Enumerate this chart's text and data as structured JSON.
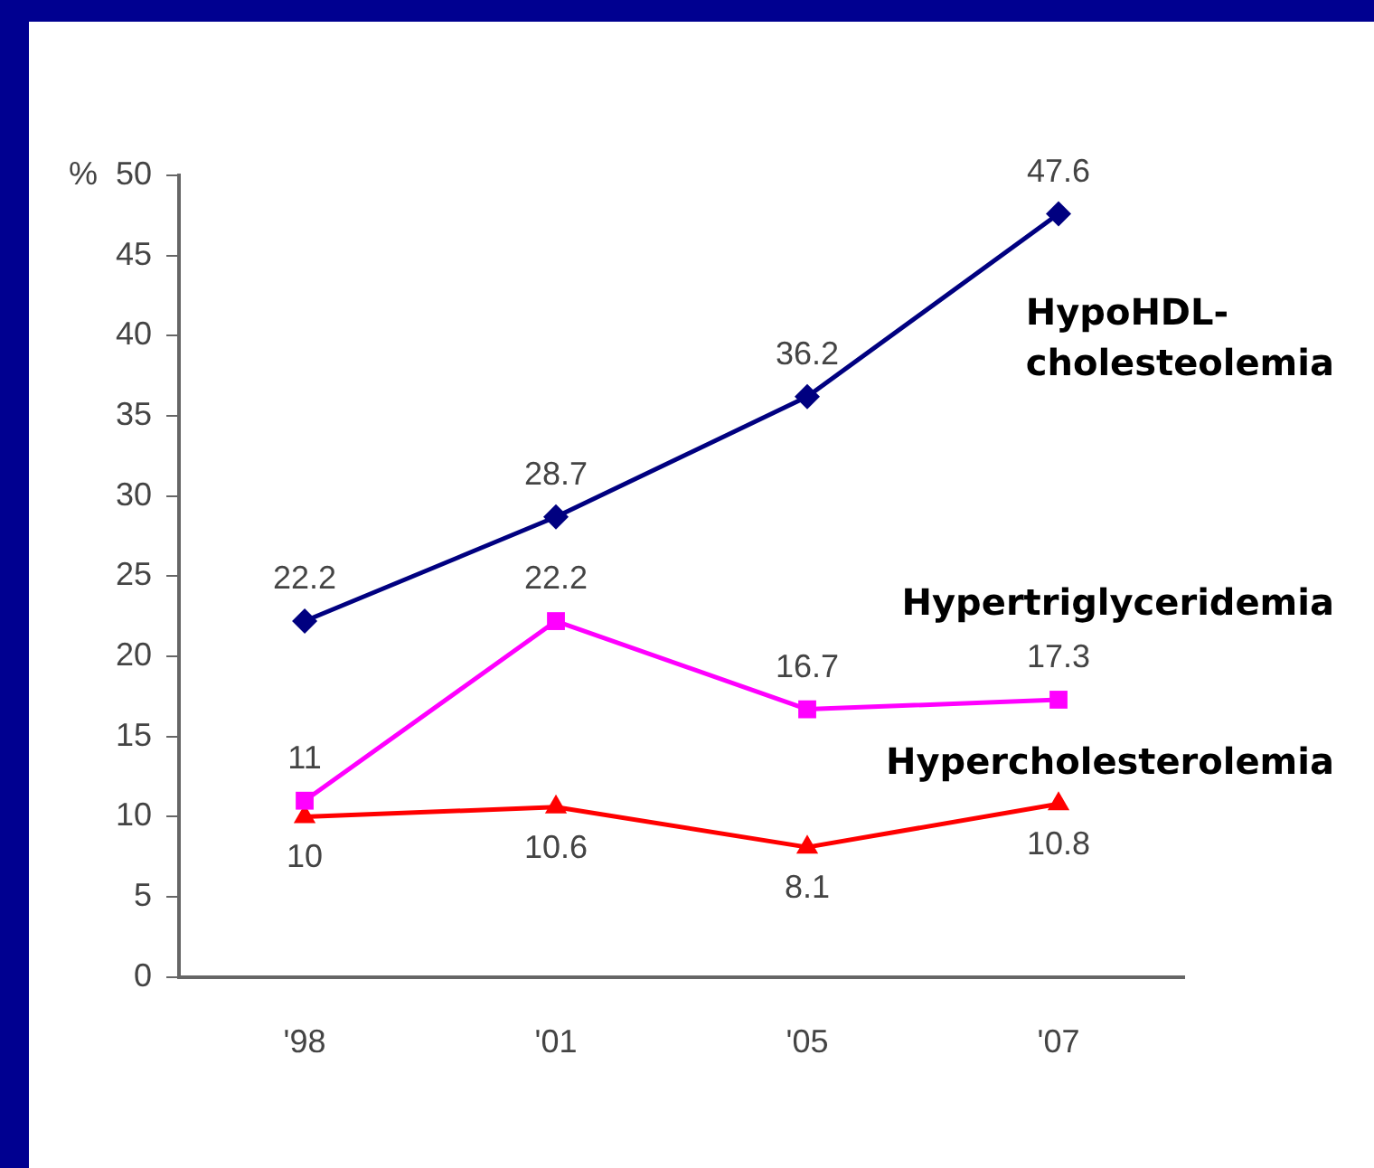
{
  "chart_data": {
    "type": "line",
    "ylabel": "%",
    "categories": [
      "'98",
      "'01",
      "'05",
      "'07"
    ],
    "series": [
      {
        "name": "HypoHDL-cholesteolemia",
        "color": "#000080",
        "marker": "diamond",
        "values": [
          22.2,
          28.7,
          36.2,
          47.6
        ]
      },
      {
        "name": "Hypertriglyceridemia",
        "color": "#ff00ff",
        "marker": "square",
        "values": [
          11,
          22.2,
          16.7,
          17.3
        ]
      },
      {
        "name": "Hypercholesterolemia",
        "color": "#ff0000",
        "marker": "triangle",
        "values": [
          10,
          10.6,
          8.1,
          10.8
        ]
      }
    ],
    "ylim": [
      0,
      50
    ],
    "yticks": [
      0,
      5,
      10,
      15,
      20,
      25,
      30,
      35,
      40,
      45,
      50
    ],
    "grid": false,
    "data_labels": true,
    "legend": false
  }
}
